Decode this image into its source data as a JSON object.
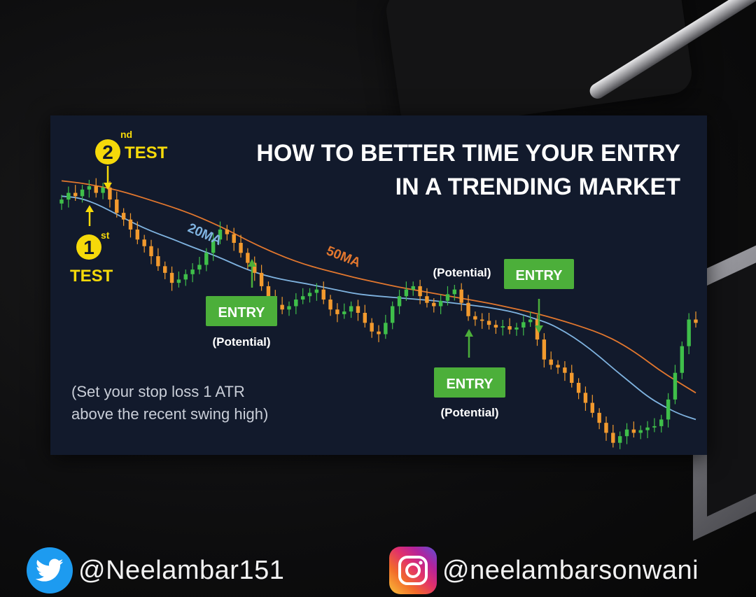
{
  "chart": {
    "title_line1": "HOW TO BETTER TIME YOUR ENTRY",
    "title_line2": "IN A TRENDING MARKET",
    "first_test": {
      "num": "1",
      "sup": "st",
      "word": "TEST"
    },
    "second_test": {
      "num": "2",
      "sup": "nd",
      "word": "TEST"
    },
    "ma20_label": "20MA",
    "ma50_label": "50MA",
    "entry_label": "ENTRY",
    "potential_label": "(Potential)",
    "note_line1": "(Set your stop loss 1 ATR",
    "note_line2": "above the recent swing high)",
    "colors": {
      "up": "#3fbf4a",
      "down": "#f29a2e",
      "ma20": "#7fb3e0",
      "ma50": "#e2772e",
      "accent": "#f5d90a",
      "entry": "#4caf3a",
      "background": "#121a2c"
    }
  },
  "chart_data": {
    "type": "candlestick",
    "title": "HOW TO BETTER TIME YOUR ENTRY IN A TRENDING MARKET",
    "trend": "down",
    "closes": [
      104,
      105,
      104.5,
      105.5,
      106,
      105,
      105.8,
      104,
      102,
      101,
      99.5,
      98,
      97,
      95.5,
      94,
      93,
      91.5,
      92,
      92.8,
      93.5,
      94.2,
      96,
      98,
      99.5,
      98.8,
      97.5,
      96,
      94.5,
      93,
      91,
      89.5,
      88.2,
      87.5,
      88,
      89,
      89.5,
      90,
      90.5,
      89,
      87.5,
      86.8,
      87.2,
      88,
      87,
      85.5,
      84.2,
      83.8,
      85.5,
      88,
      89.5,
      90.5,
      91,
      89.5,
      88.5,
      88,
      88.8,
      89.8,
      90.5,
      88.5,
      86.5,
      86,
      85.8,
      85.2,
      84.8,
      85,
      84.5,
      84.8,
      85.6,
      86,
      83,
      80,
      79.2,
      78.8,
      78,
      76.5,
      75,
      73.5,
      72,
      70.5,
      69,
      67.5,
      68.5,
      69.5,
      69,
      69.4,
      69.8,
      70,
      71,
      74,
      78,
      82,
      86,
      85.5
    ],
    "ma20": [
      104.5,
      104.3,
      103.5,
      102.3,
      101,
      99.8,
      98.8,
      97.9,
      96.9,
      96,
      95,
      93.9,
      93,
      92.3,
      91.8,
      91.4,
      90.9,
      90.4,
      89.9,
      89.6,
      89.4,
      89.2,
      89,
      88.8,
      88.5,
      88.2,
      87.9,
      87.5,
      87,
      86.2,
      85.4,
      84.1,
      82.5,
      80.6,
      78.5,
      76.5,
      74.5,
      73,
      71.8,
      71
    ],
    "ma50": [
      106.8,
      106.5,
      106,
      105.4,
      104.6,
      103.7,
      102.8,
      101.8,
      100.6,
      99.3,
      97.8,
      96.5,
      95.3,
      94.3,
      93.5,
      92.8,
      92.1,
      91.5,
      90.9,
      90.4,
      89.9,
      89.4,
      88.9,
      88.4,
      87.8,
      87.2,
      86.5,
      85.7,
      84.8,
      83.8,
      82.4,
      80.6,
      78.5,
      76.7,
      75
    ],
    "annotations": [
      "1st TEST",
      "2nd TEST",
      "ENTRY (Potential)",
      "ENTRY (Potential)",
      "(Potential) ENTRY",
      "20MA",
      "50MA"
    ]
  },
  "social": {
    "twitter_handle": "@Neelambar151",
    "instagram_handle": "@neelambarsonwani"
  }
}
